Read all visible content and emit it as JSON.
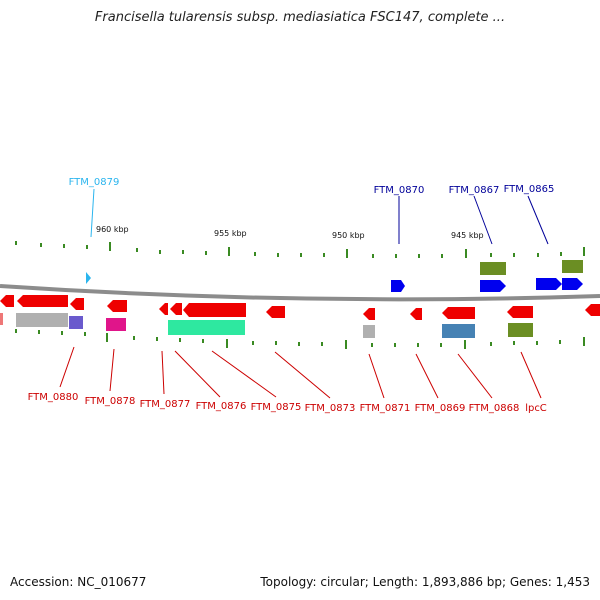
{
  "title": "Francisella tularensis subsp. mediasiatica FSC147, complete ...",
  "footer": {
    "accession": "Accession: NC_010677",
    "summary": "Topology: circular; Length: 1,893,886 bp; Genes: 1,453"
  },
  "colors": {
    "background": "#ffffff",
    "backbone": "#8c8c8c",
    "tick": "#3a8a22",
    "gene_reverse": "#ee0000",
    "gene_forward": "#0000ee",
    "gene_label_forward": "#2bb5ee",
    "label_reverse": "#cc0000",
    "label_forward": "#000099"
  },
  "scale_labels": [
    "960 kbp",
    "955 kbp",
    "950 kbp",
    "945 kbp"
  ],
  "gene_labels": {
    "top": [
      "FTM_0879",
      "FTM_0870",
      "FTM_0867",
      "FTM_0865"
    ],
    "bottom": [
      "FTM_0880",
      "FTM_0878",
      "FTM_0877",
      "FTM_0876",
      "FTM_0875",
      "FTM_0873",
      "FTM_0871",
      "FTM_0869",
      "FTM_0868",
      "lpcC"
    ]
  }
}
